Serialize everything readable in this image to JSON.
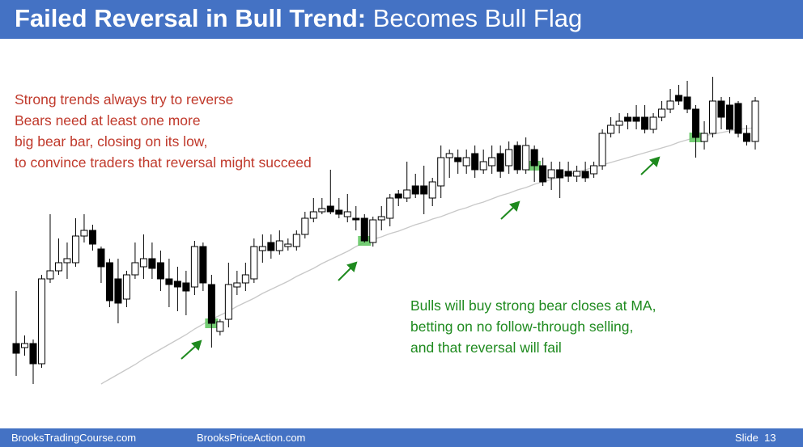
{
  "header": {
    "title_bold": "Failed Reversal in Bull Trend:",
    "title_rest": "Becomes Bull Flag"
  },
  "notes": {
    "bears": [
      "Strong trends always try to reverse",
      "Bears need at least one more",
      "big bear bar, closing on its low,",
      "to convince traders that reversal might succeed"
    ],
    "bulls": [
      "Bulls will buy strong bear closes at MA,",
      "betting on no follow-through selling,",
      "and that reversal will fail"
    ]
  },
  "chart_data": {
    "type": "candlestick",
    "open": [
      75,
      70,
      75,
      50,
      155,
      165,
      175,
      175,
      208,
      215,
      192,
      175,
      155,
      130,
      160,
      170,
      180,
      175,
      155,
      152,
      150,
      145,
      195,
      148,
      90,
      105,
      145,
      150,
      155,
      190,
      200,
      190,
      195,
      195,
      210,
      230,
      238,
      245,
      240,
      232,
      230,
      230,
      200,
      228,
      230,
      260,
      255,
      270,
      270,
      255,
      270,
      305,
      305,
      295,
      310,
      290,
      295,
      310,
      295,
      320,
      290,
      315,
      295,
      280,
      290,
      288,
      282,
      288,
      285,
      295,
      335,
      345,
      355,
      355,
      355,
      340,
      355,
      365,
      382,
      380,
      365,
      325,
      335,
      375,
      370,
      372,
      335,
      325
    ],
    "high": [
      140,
      85,
      80,
      160,
      235,
      205,
      200,
      230,
      235,
      222,
      195,
      180,
      180,
      165,
      200,
      210,
      200,
      190,
      180,
      170,
      165,
      202,
      200,
      160,
      105,
      175,
      165,
      175,
      205,
      210,
      210,
      215,
      205,
      215,
      238,
      255,
      255,
      290,
      255,
      260,
      245,
      235,
      232,
      245,
      260,
      265,
      300,
      285,
      295,
      280,
      320,
      315,
      315,
      315,
      320,
      315,
      320,
      320,
      325,
      325,
      330,
      320,
      305,
      300,
      300,
      300,
      295,
      300,
      300,
      340,
      355,
      360,
      360,
      370,
      370,
      360,
      375,
      390,
      395,
      400,
      370,
      350,
      405,
      380,
      380,
      375,
      345,
      380
    ],
    "low": [
      35,
      60,
      25,
      45,
      150,
      160,
      155,
      170,
      200,
      190,
      150,
      120,
      100,
      120,
      155,
      155,
      155,
      140,
      120,
      115,
      110,
      135,
      140,
      70,
      85,
      95,
      135,
      140,
      150,
      175,
      180,
      185,
      190,
      190,
      205,
      225,
      235,
      235,
      230,
      225,
      215,
      200,
      195,
      215,
      220,
      245,
      250,
      255,
      235,
      245,
      255,
      280,
      285,
      285,
      280,
      285,
      285,
      280,
      285,
      285,
      285,
      275,
      270,
      265,
      255,
      275,
      275,
      275,
      280,
      290,
      330,
      335,
      340,
      340,
      335,
      335,
      350,
      360,
      370,
      360,
      305,
      315,
      330,
      340,
      335,
      330,
      320,
      315
    ],
    "close": [
      63,
      75,
      50,
      155,
      165,
      175,
      180,
      208,
      215,
      198,
      170,
      128,
      125,
      160,
      175,
      180,
      168,
      155,
      148,
      145,
      140,
      195,
      150,
      100,
      102,
      148,
      150,
      160,
      195,
      195,
      190,
      202,
      198,
      210,
      230,
      238,
      242,
      238,
      235,
      238,
      228,
      202,
      228,
      232,
      255,
      255,
      265,
      260,
      260,
      275,
      305,
      310,
      300,
      305,
      290,
      300,
      305,
      288,
      315,
      290,
      320,
      295,
      275,
      290,
      280,
      282,
      288,
      280,
      295,
      335,
      345,
      350,
      350,
      350,
      340,
      355,
      365,
      375,
      375,
      365,
      330,
      335,
      375,
      355,
      340,
      335,
      325,
      375
    ],
    "ma": [
      null,
      null,
      null,
      null,
      null,
      null,
      null,
      null,
      null,
      null,
      25,
      31,
      37,
      43,
      49,
      56,
      62,
      68,
      74,
      80,
      86,
      93,
      99,
      105,
      110,
      115,
      121,
      126,
      131,
      137,
      142,
      147,
      152,
      158,
      163,
      168,
      174,
      179,
      184,
      189,
      195,
      200,
      204,
      207,
      211,
      214,
      218,
      222,
      225,
      229,
      232,
      236,
      240,
      243,
      247,
      250,
      254,
      258,
      261,
      265,
      268,
      272,
      275,
      278,
      281,
      284,
      287,
      290,
      293,
      296,
      299,
      302,
      305,
      308,
      311,
      314,
      317,
      320,
      324,
      327,
      330,
      332,
      334,
      336,
      338,
      340,
      341,
      342
    ],
    "highlights": [
      23,
      41,
      61,
      80
    ],
    "ylim": [
      0,
      420
    ],
    "up_color": "#ffffff",
    "down_color": "#000000",
    "outline_color": "#000000",
    "ma_color": "#c8c8c8",
    "highlight_color": "#5cc45c"
  },
  "footer": {
    "left": "BrooksTradingCourse.com",
    "center": "BrooksPriceAction.com",
    "right": "Slide  13"
  }
}
